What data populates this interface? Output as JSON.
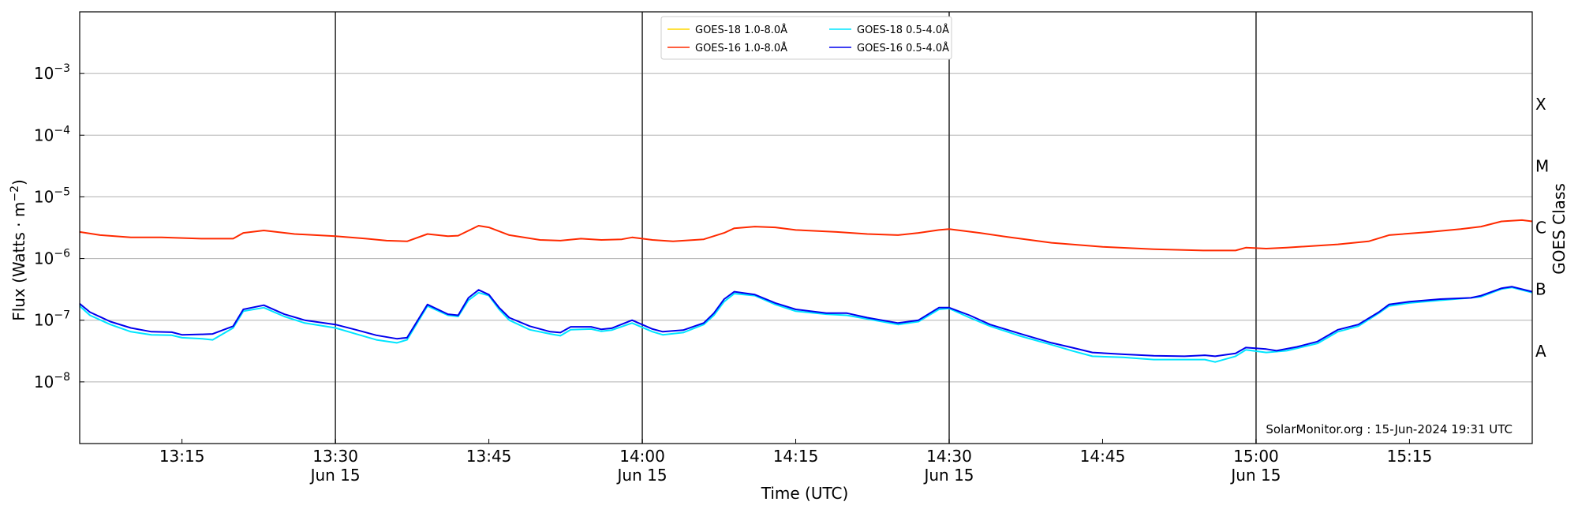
{
  "chart_data": {
    "type": "line",
    "title": "",
    "xlabel": "Time (UTC)",
    "ylabel": "Flux (Watts · m",
    "ylabel_sup": "−2",
    "ylabel_close": ")",
    "y_scale": "log",
    "ylim": [
      1e-09,
      0.01
    ],
    "xlim": [
      "13:05",
      "15:27"
    ],
    "grid": "horizontal at decades",
    "legend_placement": "top-center",
    "x_ticks": [
      {
        "t": "13:15",
        "label": "13:15",
        "date": ""
      },
      {
        "t": "13:30",
        "label": "13:30",
        "date": "Jun 15"
      },
      {
        "t": "13:45",
        "label": "13:45",
        "date": ""
      },
      {
        "t": "14:00",
        "label": "14:00",
        "date": "Jun 15"
      },
      {
        "t": "14:15",
        "label": "14:15",
        "date": ""
      },
      {
        "t": "14:30",
        "label": "14:30",
        "date": "Jun 15"
      },
      {
        "t": "14:45",
        "label": "14:45",
        "date": ""
      },
      {
        "t": "15:00",
        "label": "15:00",
        "date": "Jun 15"
      },
      {
        "t": "15:15",
        "label": "15:15",
        "date": ""
      }
    ],
    "vertical_lines": [
      "13:30",
      "14:00",
      "14:30",
      "15:00"
    ],
    "y_ticks": [
      {
        "exp": -3,
        "base": "10",
        "sup": "−3"
      },
      {
        "exp": -4,
        "base": "10",
        "sup": "−4"
      },
      {
        "exp": -5,
        "base": "10",
        "sup": "−5"
      },
      {
        "exp": -6,
        "base": "10",
        "sup": "−6"
      },
      {
        "exp": -7,
        "base": "10",
        "sup": "−7"
      },
      {
        "exp": -8,
        "base": "10",
        "sup": "−8"
      }
    ],
    "secondary_axis": {
      "label": "GOES Class",
      "classes": [
        {
          "name": "X",
          "exp": -3.5
        },
        {
          "name": "M",
          "exp": -4.5
        },
        {
          "name": "C",
          "exp": -5.5
        },
        {
          "name": "B",
          "exp": -6.5
        },
        {
          "name": "A",
          "exp": -7.5
        }
      ]
    },
    "annotation": "SolarMonitor.org : 15-Jun-2024 19:31 UTC",
    "series": [
      {
        "name": "GOES-18 1.0-8.0Å",
        "color": "#ffd700",
        "points": []
      },
      {
        "name": "GOES-16 1.0-8.0Å",
        "color": "#ff2a00",
        "points": [
          [
            "13:05",
            2.7e-06
          ],
          [
            "13:07",
            2.4e-06
          ],
          [
            "13:10",
            2.2e-06
          ],
          [
            "13:13",
            2.2e-06
          ],
          [
            "13:17",
            2.1e-06
          ],
          [
            "13:20",
            2.1e-06
          ],
          [
            "13:21",
            2.6e-06
          ],
          [
            "13:23",
            2.85e-06
          ],
          [
            "13:26",
            2.5e-06
          ],
          [
            "13:30",
            2.3e-06
          ],
          [
            "13:33",
            2.1e-06
          ],
          [
            "13:35",
            1.95e-06
          ],
          [
            "13:37",
            1.9e-06
          ],
          [
            "13:39",
            2.5e-06
          ],
          [
            "13:41",
            2.3e-06
          ],
          [
            "13:42",
            2.35e-06
          ],
          [
            "13:44",
            3.4e-06
          ],
          [
            "13:45",
            3.2e-06
          ],
          [
            "13:47",
            2.4e-06
          ],
          [
            "13:50",
            2e-06
          ],
          [
            "13:52",
            1.95e-06
          ],
          [
            "13:54",
            2.1e-06
          ],
          [
            "13:56",
            2e-06
          ],
          [
            "13:58",
            2.05e-06
          ],
          [
            "13:59",
            2.2e-06
          ],
          [
            "14:01",
            2e-06
          ],
          [
            "14:03",
            1.9e-06
          ],
          [
            "14:06",
            2.05e-06
          ],
          [
            "14:08",
            2.6e-06
          ],
          [
            "14:09",
            3.1e-06
          ],
          [
            "14:11",
            3.3e-06
          ],
          [
            "14:13",
            3.2e-06
          ],
          [
            "14:15",
            2.9e-06
          ],
          [
            "14:19",
            2.7e-06
          ],
          [
            "14:22",
            2.5e-06
          ],
          [
            "14:25",
            2.4e-06
          ],
          [
            "14:27",
            2.6e-06
          ],
          [
            "14:29",
            2.9e-06
          ],
          [
            "14:30",
            3e-06
          ],
          [
            "14:33",
            2.6e-06
          ],
          [
            "14:36",
            2.2e-06
          ],
          [
            "14:40",
            1.8e-06
          ],
          [
            "14:45",
            1.55e-06
          ],
          [
            "14:50",
            1.42e-06
          ],
          [
            "14:55",
            1.35e-06
          ],
          [
            "14:58",
            1.35e-06
          ],
          [
            "14:59",
            1.5e-06
          ],
          [
            "15:01",
            1.45e-06
          ],
          [
            "15:03",
            1.5e-06
          ],
          [
            "15:08",
            1.7e-06
          ],
          [
            "15:11",
            1.9e-06
          ],
          [
            "15:13",
            2.4e-06
          ],
          [
            "15:17",
            2.7e-06
          ],
          [
            "15:20",
            3e-06
          ],
          [
            "15:22",
            3.3e-06
          ],
          [
            "15:24",
            4e-06
          ],
          [
            "15:26",
            4.2e-06
          ],
          [
            "15:27",
            4e-06
          ]
        ]
      },
      {
        "name": "GOES-18 0.5-4.0Å",
        "color": "#00e5ff",
        "points": [
          [
            "13:05",
            1.7e-07
          ],
          [
            "13:06",
            1.2e-07
          ],
          [
            "13:08",
            8.5e-08
          ],
          [
            "13:10",
            6.5e-08
          ],
          [
            "13:12",
            5.8e-08
          ],
          [
            "13:14",
            5.7e-08
          ],
          [
            "13:15",
            5.2e-08
          ],
          [
            "13:17",
            5e-08
          ],
          [
            "13:18",
            4.8e-08
          ],
          [
            "13:20",
            7.5e-08
          ],
          [
            "13:21",
            1.4e-07
          ],
          [
            "13:23",
            1.6e-07
          ],
          [
            "13:25",
            1.15e-07
          ],
          [
            "13:27",
            9e-08
          ],
          [
            "13:30",
            7.5e-08
          ],
          [
            "13:32",
            6e-08
          ],
          [
            "13:34",
            4.8e-08
          ],
          [
            "13:36",
            4.3e-08
          ],
          [
            "13:37",
            4.8e-08
          ],
          [
            "13:39",
            1.7e-07
          ],
          [
            "13:41",
            1.2e-07
          ],
          [
            "13:42",
            1.15e-07
          ],
          [
            "13:43",
            2.1e-07
          ],
          [
            "13:44",
            2.8e-07
          ],
          [
            "13:45",
            2.5e-07
          ],
          [
            "13:46",
            1.5e-07
          ],
          [
            "13:47",
            1e-07
          ],
          [
            "13:49",
            7e-08
          ],
          [
            "13:51",
            6e-08
          ],
          [
            "13:52",
            5.6e-08
          ],
          [
            "13:53",
            7e-08
          ],
          [
            "13:55",
            7.2e-08
          ],
          [
            "13:56",
            6.6e-08
          ],
          [
            "13:57",
            6.9e-08
          ],
          [
            "13:59",
            9e-08
          ],
          [
            "14:01",
            6.5e-08
          ],
          [
            "14:02",
            5.8e-08
          ],
          [
            "14:04",
            6.3e-08
          ],
          [
            "14:06",
            8.5e-08
          ],
          [
            "14:07",
            1.2e-07
          ],
          [
            "14:08",
            2e-07
          ],
          [
            "14:09",
            2.7e-07
          ],
          [
            "14:11",
            2.5e-07
          ],
          [
            "14:13",
            1.8e-07
          ],
          [
            "14:15",
            1.4e-07
          ],
          [
            "14:18",
            1.25e-07
          ],
          [
            "14:20",
            1.2e-07
          ],
          [
            "14:22",
            1.05e-07
          ],
          [
            "14:25",
            8.5e-08
          ],
          [
            "14:27",
            9.5e-08
          ],
          [
            "14:29",
            1.5e-07
          ],
          [
            "14:30",
            1.55e-07
          ],
          [
            "14:32",
            1.1e-07
          ],
          [
            "14:34",
            8e-08
          ],
          [
            "14:37",
            5.5e-08
          ],
          [
            "14:40",
            4e-08
          ],
          [
            "14:42",
            3.2e-08
          ],
          [
            "14:44",
            2.6e-08
          ],
          [
            "14:47",
            2.5e-08
          ],
          [
            "14:50",
            2.3e-08
          ],
          [
            "14:53",
            2.3e-08
          ],
          [
            "14:55",
            2.3e-08
          ],
          [
            "14:56",
            2.1e-08
          ],
          [
            "14:58",
            2.6e-08
          ],
          [
            "14:59",
            3.3e-08
          ],
          [
            "15:01",
            3e-08
          ],
          [
            "15:03",
            3.2e-08
          ],
          [
            "15:06",
            4.2e-08
          ],
          [
            "15:08",
            6.5e-08
          ],
          [
            "15:10",
            8e-08
          ],
          [
            "15:12",
            1.3e-07
          ],
          [
            "15:13",
            1.7e-07
          ],
          [
            "15:15",
            1.9e-07
          ],
          [
            "15:18",
            2.1e-07
          ],
          [
            "15:21",
            2.3e-07
          ],
          [
            "15:22",
            2.4e-07
          ],
          [
            "15:24",
            3.2e-07
          ],
          [
            "15:25",
            3.4e-07
          ],
          [
            "15:27",
            2.8e-07
          ]
        ]
      },
      {
        "name": "GOES-16 0.5-4.0Å",
        "color": "#0000ee",
        "points": [
          [
            "13:05",
            1.85e-07
          ],
          [
            "13:06",
            1.35e-07
          ],
          [
            "13:08",
            9.5e-08
          ],
          [
            "13:10",
            7.5e-08
          ],
          [
            "13:12",
            6.5e-08
          ],
          [
            "13:14",
            6.4e-08
          ],
          [
            "13:15",
            5.8e-08
          ],
          [
            "13:17",
            5.9e-08
          ],
          [
            "13:18",
            6e-08
          ],
          [
            "13:20",
            8e-08
          ],
          [
            "13:21",
            1.5e-07
          ],
          [
            "13:23",
            1.75e-07
          ],
          [
            "13:25",
            1.25e-07
          ],
          [
            "13:27",
            1e-07
          ],
          [
            "13:30",
            8.5e-08
          ],
          [
            "13:32",
            7e-08
          ],
          [
            "13:34",
            5.7e-08
          ],
          [
            "13:36",
            5e-08
          ],
          [
            "13:37",
            5.2e-08
          ],
          [
            "13:39",
            1.8e-07
          ],
          [
            "13:41",
            1.25e-07
          ],
          [
            "13:42",
            1.2e-07
          ],
          [
            "13:43",
            2.3e-07
          ],
          [
            "13:44",
            3.1e-07
          ],
          [
            "13:45",
            2.6e-07
          ],
          [
            "13:46",
            1.6e-07
          ],
          [
            "13:47",
            1.1e-07
          ],
          [
            "13:49",
            8e-08
          ],
          [
            "13:51",
            6.5e-08
          ],
          [
            "13:52",
            6.3e-08
          ],
          [
            "13:53",
            7.8e-08
          ],
          [
            "13:55",
            7.8e-08
          ],
          [
            "13:56",
            7.1e-08
          ],
          [
            "13:57",
            7.4e-08
          ],
          [
            "13:59",
            1e-07
          ],
          [
            "14:01",
            7.2e-08
          ],
          [
            "14:02",
            6.5e-08
          ],
          [
            "14:04",
            6.9e-08
          ],
          [
            "14:06",
            9e-08
          ],
          [
            "14:07",
            1.3e-07
          ],
          [
            "14:08",
            2.2e-07
          ],
          [
            "14:09",
            2.9e-07
          ],
          [
            "14:11",
            2.6e-07
          ],
          [
            "14:13",
            1.9e-07
          ],
          [
            "14:15",
            1.5e-07
          ],
          [
            "14:18",
            1.3e-07
          ],
          [
            "14:20",
            1.3e-07
          ],
          [
            "14:22",
            1.1e-07
          ],
          [
            "14:25",
            9e-08
          ],
          [
            "14:27",
            1e-07
          ],
          [
            "14:29",
            1.6e-07
          ],
          [
            "14:30",
            1.6e-07
          ],
          [
            "14:32",
            1.2e-07
          ],
          [
            "14:34",
            8.5e-08
          ],
          [
            "14:37",
            6e-08
          ],
          [
            "14:40",
            4.3e-08
          ],
          [
            "14:42",
            3.6e-08
          ],
          [
            "14:44",
            3e-08
          ],
          [
            "14:47",
            2.8e-08
          ],
          [
            "14:50",
            2.65e-08
          ],
          [
            "14:53",
            2.6e-08
          ],
          [
            "14:55",
            2.7e-08
          ],
          [
            "14:56",
            2.6e-08
          ],
          [
            "14:58",
            2.9e-08
          ],
          [
            "14:59",
            3.6e-08
          ],
          [
            "15:01",
            3.4e-08
          ],
          [
            "15:02",
            3.2e-08
          ],
          [
            "15:04",
            3.7e-08
          ],
          [
            "15:06",
            4.5e-08
          ],
          [
            "15:08",
            7e-08
          ],
          [
            "15:10",
            8.5e-08
          ],
          [
            "15:12",
            1.35e-07
          ],
          [
            "15:13",
            1.8e-07
          ],
          [
            "15:15",
            2e-07
          ],
          [
            "15:18",
            2.2e-07
          ],
          [
            "15:21",
            2.3e-07
          ],
          [
            "15:22",
            2.5e-07
          ],
          [
            "15:24",
            3.3e-07
          ],
          [
            "15:25",
            3.5e-07
          ],
          [
            "15:27",
            2.9e-07
          ]
        ]
      }
    ]
  }
}
